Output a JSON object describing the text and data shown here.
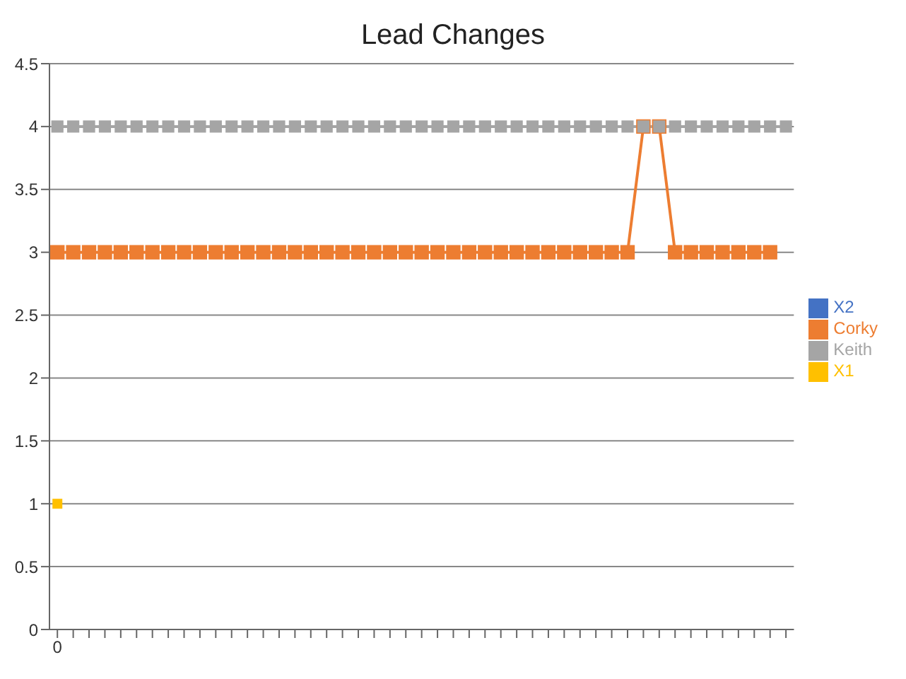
{
  "chart_data": {
    "type": "line",
    "title": "Lead Changes",
    "categories": [
      "0",
      null,
      null,
      null,
      null,
      null,
      null,
      null,
      null,
      null,
      null,
      null,
      null,
      null,
      null,
      null,
      null,
      null,
      null,
      null,
      null,
      null,
      null,
      null,
      null,
      null,
      null,
      null,
      null,
      null,
      null,
      null,
      null,
      null,
      null,
      null,
      null,
      null,
      null,
      null,
      null,
      null,
      null,
      null,
      null,
      null,
      null
    ],
    "series": [
      {
        "name": "X2",
        "color": "#4472c4",
        "values": [
          null,
          null,
          null,
          null,
          null,
          null,
          null,
          null,
          null,
          null,
          null,
          null,
          null,
          null,
          null,
          null,
          null,
          null,
          null,
          null,
          null,
          null,
          null,
          null,
          null,
          null,
          null,
          null,
          null,
          null,
          null,
          null,
          null,
          null,
          null,
          null,
          null,
          null,
          null,
          null,
          null,
          null,
          null,
          null,
          null,
          null,
          null
        ]
      },
      {
        "name": "Corky",
        "color": "#ed7d31",
        "values": [
          3,
          3,
          3,
          3,
          3,
          3,
          3,
          3,
          3,
          3,
          3,
          3,
          3,
          3,
          3,
          3,
          3,
          3,
          3,
          3,
          3,
          3,
          3,
          3,
          3,
          3,
          3,
          3,
          3,
          3,
          3,
          3,
          3,
          3,
          3,
          3,
          3,
          4,
          4,
          3,
          3,
          3,
          3,
          3,
          3,
          3,
          null
        ]
      },
      {
        "name": "Keith",
        "color": "#a5a5a5",
        "values": [
          4,
          4,
          4,
          4,
          4,
          4,
          4,
          4,
          4,
          4,
          4,
          4,
          4,
          4,
          4,
          4,
          4,
          4,
          4,
          4,
          4,
          4,
          4,
          4,
          4,
          4,
          4,
          4,
          4,
          4,
          4,
          4,
          4,
          4,
          4,
          4,
          4,
          4,
          4,
          4,
          4,
          4,
          4,
          4,
          4,
          4,
          4
        ]
      },
      {
        "name": "X1",
        "color": "#ffc000",
        "values": [
          1,
          null,
          null,
          null,
          null,
          null,
          null,
          null,
          null,
          null,
          null,
          null,
          null,
          null,
          null,
          null,
          null,
          null,
          null,
          null,
          null,
          null,
          null,
          null,
          null,
          null,
          null,
          null,
          null,
          null,
          null,
          null,
          null,
          null,
          null,
          null,
          null,
          null,
          null,
          null,
          null,
          null,
          null,
          null,
          null,
          null,
          null
        ]
      }
    ],
    "ylim": [
      0,
      4.5
    ],
    "yticks": [
      0,
      0.5,
      1,
      1.5,
      2,
      2.5,
      3,
      3.5,
      4,
      4.5
    ],
    "grid": "y",
    "legend": "right",
    "marker": "square",
    "line_style": "solid"
  }
}
